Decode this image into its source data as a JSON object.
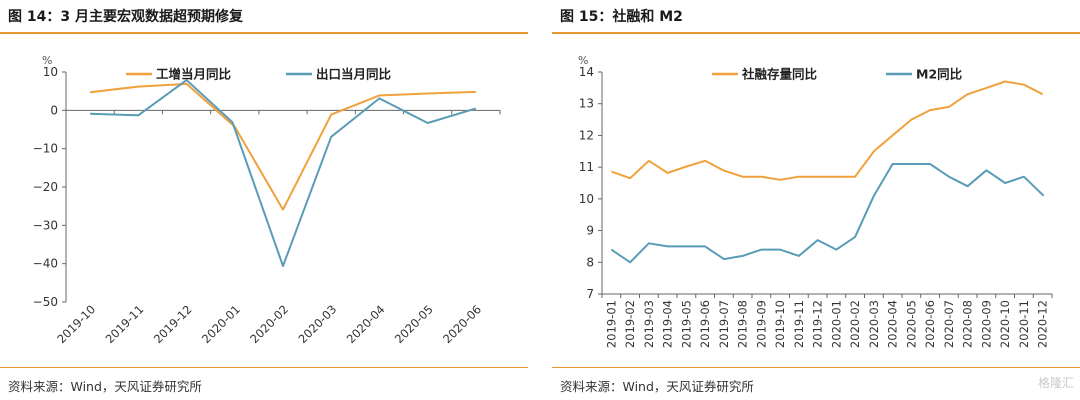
{
  "panel1": {
    "title": "图 14：3 月主要宏观数据超预期修复",
    "source": "资料来源：Wind，天风证券研究所"
  },
  "panel2": {
    "title": "图 15：社融和 M2",
    "source": "资料来源：Wind，天风证券研究所"
  },
  "watermark": "格隆汇",
  "colors": {
    "orange": "#F0A13B",
    "blue": "#5A9BB8",
    "accent_rule": "#E8962E"
  },
  "chart_data": [
    {
      "type": "line",
      "unit_label": "%",
      "categories": [
        "2019-10",
        "2019-11",
        "2019-12",
        "2020-01",
        "2020-02",
        "2020-03",
        "2020-04",
        "2020-05",
        "2020-06"
      ],
      "ylim": [
        -50,
        10
      ],
      "yticks": [
        10,
        0,
        -10,
        -20,
        -30,
        -40,
        -50
      ],
      "legend": "top",
      "grid": false,
      "series": [
        {
          "name": "工增当月同比",
          "color": "#F0A13B",
          "x": [
            0,
            1,
            2,
            3,
            4,
            5,
            6,
            7,
            8
          ],
          "values": [
            4.7,
            6.2,
            6.9,
            -4.3,
            -25.9,
            -1.1,
            3.9,
            4.4,
            4.8
          ]
        },
        {
          "name": "出口当月同比",
          "color": "#5A9BB8",
          "x": [
            0,
            1,
            2,
            2.95,
            4,
            5,
            6,
            7,
            8
          ],
          "values": [
            -0.9,
            -1.3,
            7.9,
            -3.1,
            -40.6,
            -6.9,
            3.1,
            -3.3,
            0.5
          ]
        }
      ]
    },
    {
      "type": "line",
      "unit_label": "%",
      "categories": [
        "2019-01",
        "2019-02",
        "2019-03",
        "2019-04",
        "2019-05",
        "2019-06",
        "2019-07",
        "2019-08",
        "2019-09",
        "2019-10",
        "2019-11",
        "2019-12",
        "2020-01",
        "2020-02",
        "2020-03",
        "2020-04",
        "2020-05",
        "2020-06",
        "2020-07",
        "2020-08",
        "2020-09",
        "2020-10",
        "2020-11",
        "2020-12"
      ],
      "ylim": [
        7,
        14
      ],
      "yticks": [
        14,
        13,
        12,
        11,
        10,
        9,
        8,
        7
      ],
      "legend": "top",
      "grid": false,
      "series": [
        {
          "name": "社融存量同比",
          "color": "#F0A13B",
          "values": [
            10.86,
            10.65,
            11.2,
            10.82,
            11.02,
            11.2,
            10.89,
            10.7,
            10.7,
            10.6,
            10.7,
            10.7,
            10.7,
            10.7,
            11.5,
            12.0,
            12.5,
            12.8,
            12.9,
            13.3,
            13.5,
            13.7,
            13.6,
            13.3
          ]
        },
        {
          "name": "M2同比",
          "color": "#5A9BB8",
          "x": [
            0,
            1,
            2,
            3,
            4,
            5,
            6,
            7,
            8,
            9,
            10,
            11,
            12,
            13,
            14,
            15,
            16,
            17,
            18,
            19,
            20,
            21,
            22,
            23.05
          ],
          "values": [
            8.4,
            8.0,
            8.6,
            8.5,
            8.5,
            8.5,
            8.1,
            8.2,
            8.4,
            8.4,
            8.2,
            8.7,
            8.4,
            8.8,
            10.1,
            11.1,
            11.1,
            11.1,
            10.7,
            10.4,
            10.9,
            10.5,
            10.7,
            10.1
          ]
        }
      ]
    }
  ]
}
